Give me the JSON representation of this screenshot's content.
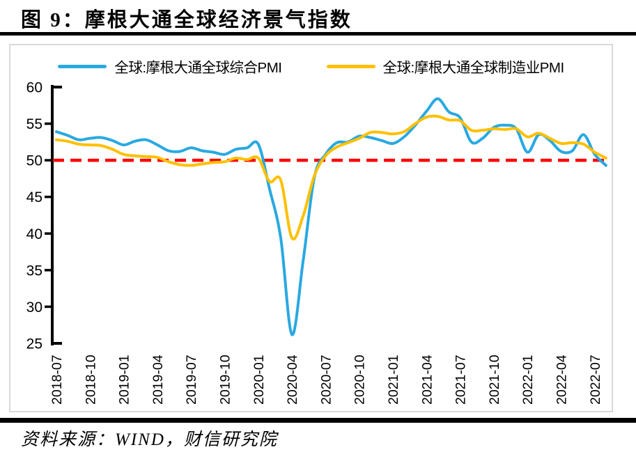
{
  "page": {
    "title": "图 9：摩根大通全球经济景气指数",
    "source": "资料来源：WIND，财信研究院"
  },
  "chart_data": {
    "type": "line",
    "title": "摩根大通全球经济景气指数",
    "ylim": [
      25,
      60
    ],
    "yticks": [
      25,
      30,
      35,
      40,
      45,
      50,
      55,
      60
    ],
    "grid": false,
    "legend_position": "top",
    "reference_line": {
      "value": 50,
      "color": "#FF0000",
      "style": "dashed"
    },
    "x": [
      "2018-07",
      "2018-08",
      "2018-09",
      "2018-10",
      "2018-11",
      "2018-12",
      "2019-01",
      "2019-02",
      "2019-03",
      "2019-04",
      "2019-05",
      "2019-06",
      "2019-07",
      "2019-08",
      "2019-09",
      "2019-10",
      "2019-11",
      "2019-12",
      "2020-01",
      "2020-02",
      "2020-03",
      "2020-04",
      "2020-05",
      "2020-06",
      "2020-07",
      "2020-08",
      "2020-09",
      "2020-10",
      "2020-11",
      "2020-12",
      "2021-01",
      "2021-02",
      "2021-03",
      "2021-04",
      "2021-05",
      "2021-06",
      "2021-07",
      "2021-08",
      "2021-09",
      "2021-10",
      "2021-11",
      "2021-12",
      "2022-01",
      "2022-02",
      "2022-03",
      "2022-04",
      "2022-05",
      "2022-06",
      "2022-07",
      "2022-08"
    ],
    "xtick_labels": [
      "2018-07",
      "2018-10",
      "2019-01",
      "2019-04",
      "2019-07",
      "2019-10",
      "2020-01",
      "2020-04",
      "2020-07",
      "2020-10",
      "2021-01",
      "2021-04",
      "2021-07",
      "2021-10",
      "2022-01",
      "2022-04",
      "2022-07"
    ],
    "series": [
      {
        "id": "composite",
        "name": "全球:摩根大通全球综合PMI",
        "color": "#29A9E1",
        "values": [
          53.9,
          53.4,
          52.8,
          53.0,
          53.1,
          52.7,
          52.1,
          52.6,
          52.8,
          52.1,
          51.3,
          51.2,
          51.7,
          51.3,
          51.1,
          50.8,
          51.5,
          51.7,
          52.2,
          46.1,
          39.4,
          26.2,
          36.3,
          47.7,
          50.8,
          52.4,
          52.5,
          53.3,
          53.1,
          52.7,
          52.3,
          53.2,
          54.8,
          56.7,
          58.4,
          56.6,
          55.8,
          52.5,
          53.0,
          54.5,
          54.8,
          54.3,
          51.1,
          53.5,
          52.7,
          51.2,
          51.3,
          53.5,
          50.8,
          49.3
        ]
      },
      {
        "id": "manufacturing",
        "name": "全球:摩根大通全球制造业PMI",
        "color": "#FFC000",
        "values": [
          52.8,
          52.6,
          52.2,
          52.1,
          52.0,
          51.5,
          50.8,
          50.6,
          50.5,
          50.4,
          49.8,
          49.4,
          49.3,
          49.5,
          49.7,
          49.8,
          50.3,
          50.1,
          50.3,
          47.1,
          47.3,
          39.4,
          42.4,
          47.9,
          50.6,
          51.8,
          52.4,
          53.0,
          53.8,
          53.8,
          53.6,
          53.9,
          55.0,
          55.9,
          56.0,
          55.5,
          55.4,
          54.1,
          54.1,
          54.3,
          54.2,
          54.3,
          53.2,
          53.7,
          53.0,
          52.3,
          52.4,
          52.2,
          51.1,
          50.3
        ]
      }
    ]
  }
}
